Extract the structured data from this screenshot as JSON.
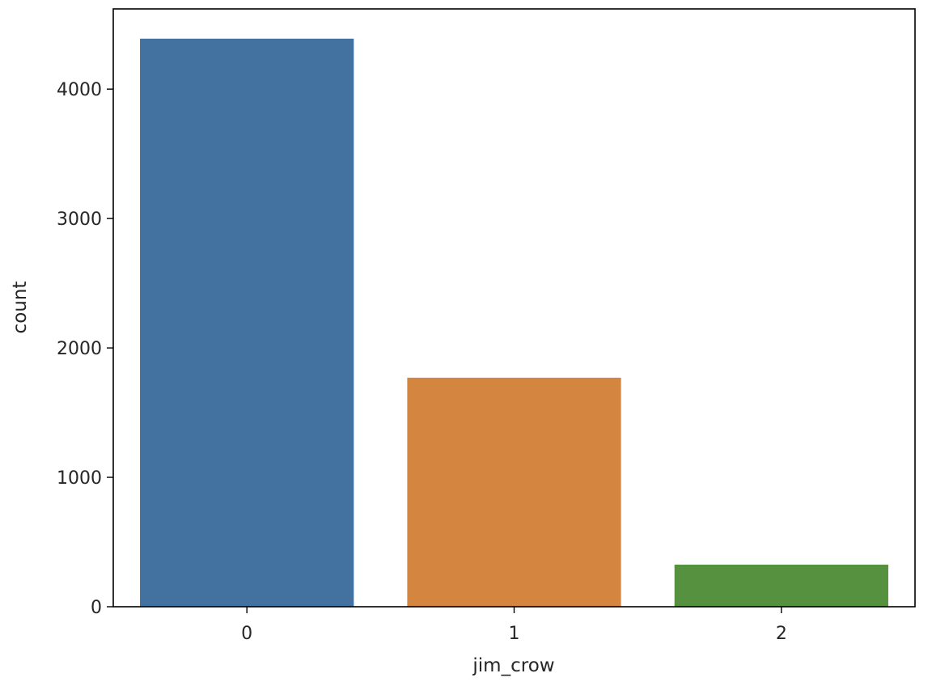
{
  "chart_data": {
    "type": "bar",
    "title": "",
    "xlabel": "jim_crow",
    "ylabel": "count",
    "categories": [
      "0",
      "1",
      "2"
    ],
    "values": [
      4390,
      1770,
      325
    ],
    "ylim": [
      0,
      4620
    ],
    "yticks": [
      0,
      1000,
      2000,
      3000,
      4000
    ],
    "grid": false,
    "legend": "none",
    "colors": [
      "#4372a0",
      "#d48640",
      "#55913f"
    ]
  }
}
